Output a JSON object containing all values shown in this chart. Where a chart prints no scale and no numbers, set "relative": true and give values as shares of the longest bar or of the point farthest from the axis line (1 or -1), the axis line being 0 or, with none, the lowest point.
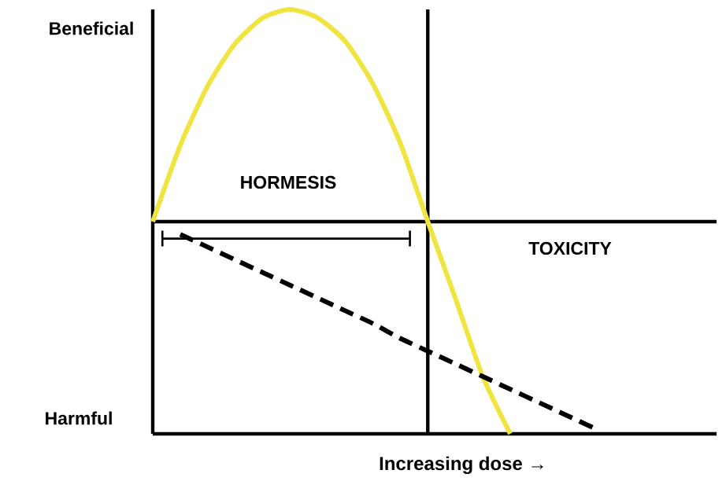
{
  "chart_data": {
    "type": "line",
    "relative": true,
    "xlabel": "Increasing dose →",
    "categories": [
      null,
      null,
      null,
      null,
      null,
      null,
      null,
      null,
      null,
      null,
      null,
      null,
      null,
      null,
      null,
      null,
      null,
      null,
      null,
      null,
      null
    ],
    "series": [
      {
        "color": "#f0e440",
        "values": [
          0,
          0.36,
          0.64,
          0.84,
          0.96,
          1.0,
          0.96,
          0.85,
          0.65,
          0.37,
          0,
          -0.36,
          -0.73,
          -1.0,
          null,
          null,
          null,
          null,
          null,
          null,
          null
        ]
      },
      {
        "color": "#000000",
        "line_style": "dashed",
        "values": [
          null,
          -0.06,
          -0.12,
          -0.18,
          -0.24,
          -0.3,
          -0.36,
          -0.42,
          -0.48,
          -0.55,
          -0.61,
          -0.67,
          -0.73,
          -0.79,
          -0.85,
          -0.91,
          -0.97,
          null,
          null,
          null,
          null
        ]
      }
    ],
    "annotations": [
      "Beneficial",
      "Harmful",
      "HORMESIS",
      "TOXICITY"
    ]
  }
}
